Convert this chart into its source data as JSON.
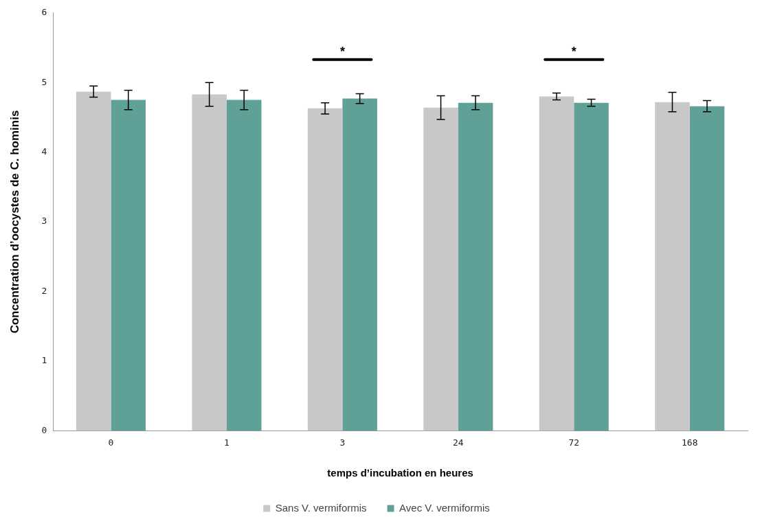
{
  "chart_data": {
    "type": "bar",
    "xlabel": "temps d’incubation en heures",
    "ylabel": "Concentration d’oocystes de C. hominis",
    "categories": [
      "0",
      "1",
      "3",
      "24",
      "72",
      "168"
    ],
    "series": [
      {
        "name": "Sans V. vermiformis",
        "color": "#c8c8c8",
        "values": [
          4.87,
          4.83,
          4.63,
          4.64,
          4.8,
          4.72
        ],
        "errors": [
          0.08,
          0.17,
          0.08,
          0.17,
          0.05,
          0.14
        ]
      },
      {
        "name": "Avec V. vermiformis",
        "color": "#5fa196",
        "values": [
          4.75,
          4.75,
          4.77,
          4.71,
          4.71,
          4.66
        ],
        "errors": [
          0.14,
          0.14,
          0.07,
          0.1,
          0.05,
          0.08
        ]
      }
    ],
    "ylim": [
      0,
      6
    ],
    "yticks": [
      0,
      1,
      2,
      3,
      4,
      5,
      6
    ],
    "grid": false,
    "legend": "bottom",
    "annotations": [
      "*",
      "*"
    ]
  }
}
